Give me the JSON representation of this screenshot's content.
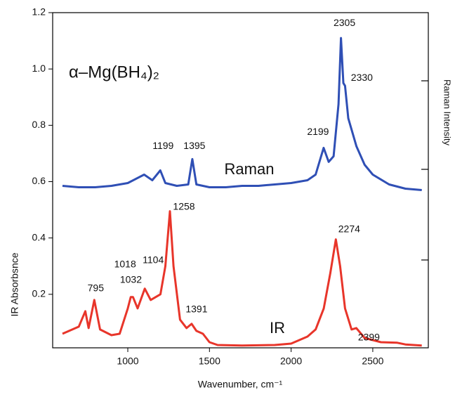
{
  "chart_data": {
    "type": "line",
    "title": "α–Mg(BH₄)₂",
    "x_label": "Wavenumber, cm⁻¹",
    "y_label": "IR Absorbsnce",
    "y2_label": "Raman Intensity",
    "xlim": [
      540,
      2840
    ],
    "ylim": [
      0.01,
      1.2
    ],
    "xticks": [
      1000,
      1500,
      2000,
      2500
    ],
    "yticks": [
      0.2,
      0.4,
      0.6,
      0.8,
      {
        "value": 1,
        "label": "1.0"
      },
      1.2
    ],
    "series": [
      {
        "name": "Raman",
        "color": "#2f4fb5",
        "x": [
          600,
          700,
          800,
          900,
          1000,
          1100,
          1150,
          1199,
          1230,
          1300,
          1370,
          1395,
          1420,
          1500,
          1600,
          1700,
          1800,
          1900,
          2000,
          2100,
          2150,
          2199,
          2230,
          2260,
          2290,
          2305,
          2320,
          2330,
          2350,
          2400,
          2450,
          2500,
          2600,
          2700,
          2800
        ],
        "values": [
          0.585,
          0.58,
          0.58,
          0.585,
          0.595,
          0.625,
          0.605,
          0.64,
          0.595,
          0.585,
          0.59,
          0.68,
          0.59,
          0.58,
          0.58,
          0.585,
          0.585,
          0.59,
          0.595,
          0.605,
          0.625,
          0.72,
          0.67,
          0.69,
          0.875,
          1.11,
          0.95,
          0.94,
          0.825,
          0.725,
          0.66,
          0.625,
          0.59,
          0.575,
          0.57
        ],
        "peaks": [
          1199,
          1395,
          2199,
          2305,
          2330
        ]
      },
      {
        "name": "IR",
        "color": "#e8352a",
        "x": [
          600,
          700,
          740,
          760,
          795,
          830,
          900,
          950,
          1000,
          1018,
          1032,
          1060,
          1104,
          1140,
          1200,
          1230,
          1258,
          1280,
          1320,
          1360,
          1391,
          1420,
          1460,
          1500,
          1550,
          1700,
          1900,
          2000,
          2100,
          2150,
          2200,
          2240,
          2274,
          2300,
          2330,
          2370,
          2399,
          2450,
          2550,
          2650,
          2700,
          2800
        ],
        "values": [
          0.06,
          0.085,
          0.14,
          0.08,
          0.18,
          0.075,
          0.055,
          0.06,
          0.15,
          0.19,
          0.19,
          0.15,
          0.22,
          0.18,
          0.2,
          0.3,
          0.495,
          0.3,
          0.11,
          0.08,
          0.095,
          0.07,
          0.06,
          0.03,
          0.02,
          0.018,
          0.02,
          0.025,
          0.05,
          0.075,
          0.15,
          0.275,
          0.395,
          0.3,
          0.15,
          0.075,
          0.08,
          0.045,
          0.03,
          0.028,
          0.022,
          0.018
        ],
        "peaks": [
          795,
          1032,
          1018,
          1104,
          1258,
          1391,
          2274,
          2399
        ]
      }
    ]
  }
}
